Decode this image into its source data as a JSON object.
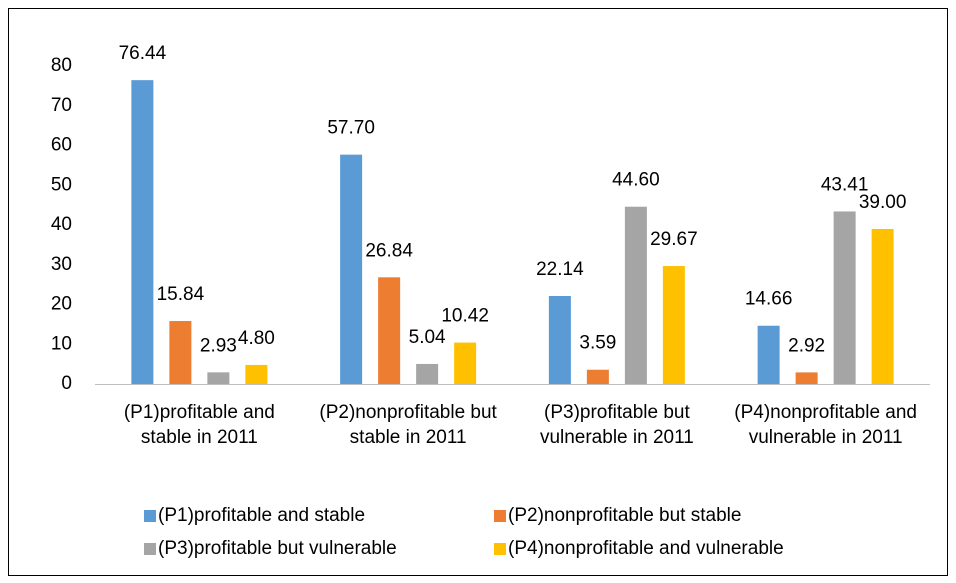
{
  "chart_data": {
    "type": "bar",
    "categories": [
      "(P1)profitable and stable in 2011",
      "(P2)nonprofitable but stable in 2011",
      "(P3)profitable but vulnerable in 2011",
      "(P4)nonprofitable and vulnerable in 2011"
    ],
    "series": [
      {
        "name": "(P1)profitable and stable",
        "color": "#5b9bd5",
        "values": [
          76.44,
          57.7,
          22.14,
          14.66
        ],
        "value_labels": [
          "76.44",
          "57.70",
          "22.14",
          "14.66"
        ]
      },
      {
        "name": "(P2)nonprofitable but stable",
        "color": "#ed7d31",
        "values": [
          15.84,
          26.84,
          3.59,
          2.92
        ],
        "value_labels": [
          "15.84",
          "26.84",
          "3.59",
          "2.92"
        ]
      },
      {
        "name": "(P3)profitable but vulnerable",
        "color": "#a5a5a5",
        "values": [
          2.93,
          5.04,
          44.6,
          43.41
        ],
        "value_labels": [
          "2.93",
          "5.04",
          "44.60",
          "43.41"
        ]
      },
      {
        "name": "(P4)nonprofitable and vulnerable",
        "color": "#ffc000",
        "values": [
          4.8,
          10.42,
          29.67,
          39.0
        ],
        "value_labels": [
          "4.80",
          "10.42",
          "29.67",
          "39.00"
        ]
      }
    ],
    "ylim": [
      0,
      80
    ],
    "yticks": [
      0,
      10,
      20,
      30,
      40,
      50,
      60,
      70,
      80
    ],
    "grid": false,
    "legend": "bottom"
  }
}
